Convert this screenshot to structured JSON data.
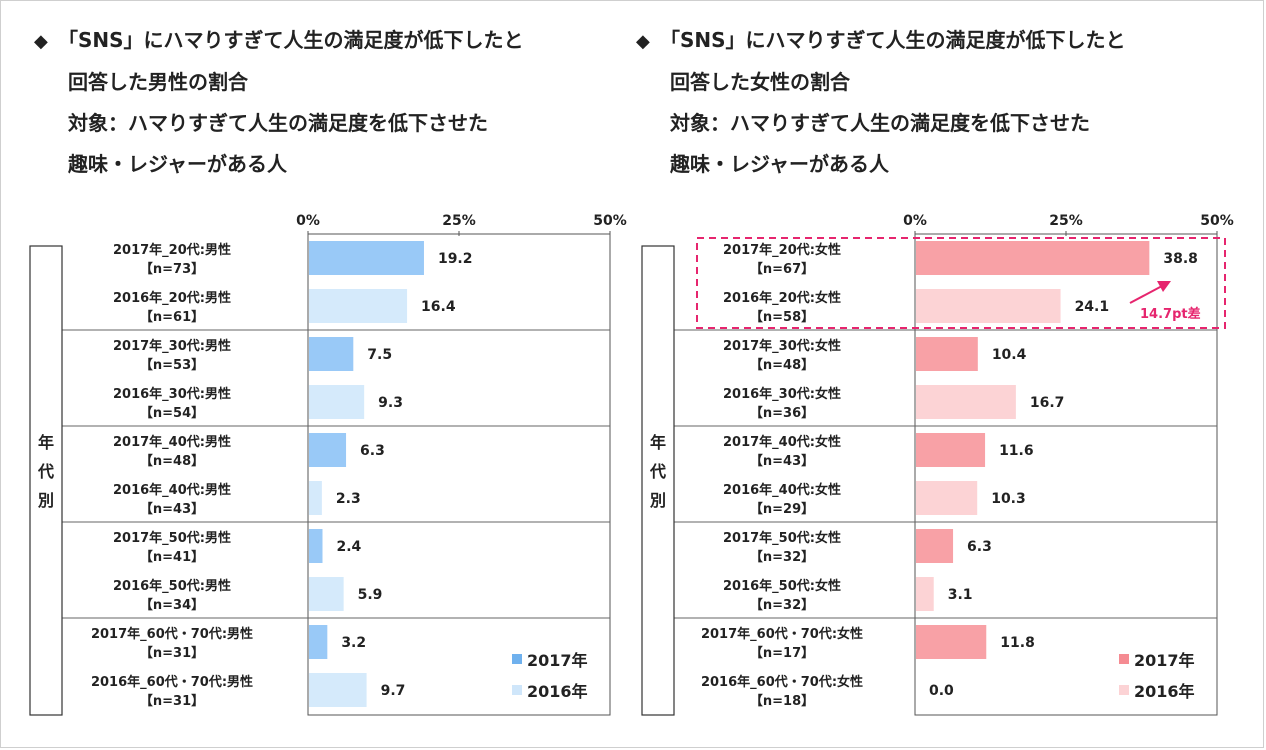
{
  "charts": [
    {
      "title_lines": [
        "「SNS」にハマりすぎて人生の満足度が低下したと",
        "回答した男性の割合",
        "対象：ハマりすぎて人生の満足度を低下させた",
        "趣味・レジャーがある人"
      ],
      "ticks": [
        "0%",
        "25%",
        "50%"
      ],
      "group_label": [
        "年",
        "代",
        "別"
      ],
      "legend": [
        "2017年",
        "2016年"
      ],
      "colors": {
        "y2017": "#99c9f7",
        "y2016": "#d5eafb",
        "legend2017": "#6fb1ee",
        "legend2016": "#cfe6fa"
      }
    },
    {
      "title_lines": [
        "「SNS」にハマりすぎて人生の満足度が低下したと",
        "回答した女性の割合",
        "対象：ハマりすぎて人生の満足度を低下させた",
        "趣味・レジャーがある人"
      ],
      "ticks": [
        "0%",
        "25%",
        "50%"
      ],
      "group_label": [
        "年",
        "代",
        "別"
      ],
      "legend": [
        "2017年",
        "2016年"
      ],
      "annotation": "14.7pt差",
      "colors": {
        "y2017": "#f8a1a6",
        "y2016": "#fcd3d5",
        "legend2017": "#f58b92",
        "legend2016": "#fcd3d5",
        "annotation": "#e6256e"
      }
    }
  ],
  "chart_data": [
    {
      "type": "bar",
      "orientation": "horizontal",
      "xlim": [
        0,
        50
      ],
      "categories": [
        "2017年_20代:男性",
        "2016年_20代:男性",
        "2017年_30代:男性",
        "2016年_30代:男性",
        "2017年_40代:男性",
        "2016年_40代:男性",
        "2017年_50代:男性",
        "2016年_50代:男性",
        "2017年_60代・70代:男性",
        "2016年_60代・70代:男性"
      ],
      "sample_sizes": [
        "【n=73】",
        "【n=61】",
        "【n=53】",
        "【n=54】",
        "【n=48】",
        "【n=43】",
        "【n=41】",
        "【n=34】",
        "【n=31】",
        "【n=31】"
      ],
      "series_by_row": [
        "2017年",
        "2016年",
        "2017年",
        "2016年",
        "2017年",
        "2016年",
        "2017年",
        "2016年",
        "2017年",
        "2016年"
      ],
      "values": [
        19.2,
        16.4,
        7.5,
        9.3,
        6.3,
        2.3,
        2.4,
        5.9,
        3.2,
        9.7
      ],
      "value_labels": [
        "19.2",
        "16.4",
        "7.5",
        "9.3",
        "6.3",
        "2.3",
        "2.4",
        "5.9",
        "3.2",
        "9.7"
      ]
    },
    {
      "type": "bar",
      "orientation": "horizontal",
      "xlim": [
        0,
        50
      ],
      "categories": [
        "2017年_20代:女性",
        "2016年_20代:女性",
        "2017年_30代:女性",
        "2016年_30代:女性",
        "2017年_40代:女性",
        "2016年_40代:女性",
        "2017年_50代:女性",
        "2016年_50代:女性",
        "2017年_60代・70代:女性",
        "2016年_60代・70代:女性"
      ],
      "sample_sizes": [
        "【n=67】",
        "【n=58】",
        "【n=48】",
        "【n=36】",
        "【n=43】",
        "【n=29】",
        "【n=32】",
        "【n=32】",
        "【n=17】",
        "【n=18】"
      ],
      "series_by_row": [
        "2017年",
        "2016年",
        "2017年",
        "2016年",
        "2017年",
        "2016年",
        "2017年",
        "2016年",
        "2017年",
        "2016年"
      ],
      "values": [
        38.8,
        24.1,
        10.4,
        16.7,
        11.6,
        10.3,
        6.3,
        3.1,
        11.8,
        0.0
      ],
      "value_labels": [
        "38.8",
        "24.1",
        "10.4",
        "16.7",
        "11.6",
        "10.3",
        "6.3",
        "3.1",
        "11.8",
        "0.0"
      ]
    }
  ]
}
